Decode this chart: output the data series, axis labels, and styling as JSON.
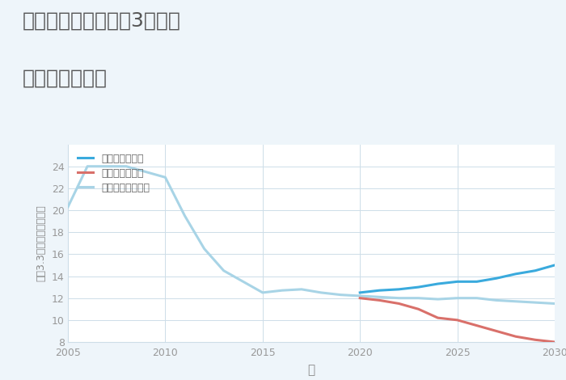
{
  "title_line1": "三重県名張市希央台3番町の",
  "title_line2": "土地の価格推移",
  "xlabel": "年",
  "ylabel": "坪（3.3㎡）単価（万円）",
  "background_color": "#eef5fa",
  "plot_background": "#ffffff",
  "grid_color": "#cddde8",
  "xlim": [
    2005,
    2030
  ],
  "ylim": [
    8,
    26
  ],
  "yticks": [
    8,
    10,
    12,
    14,
    16,
    18,
    20,
    22,
    24
  ],
  "xticks": [
    2005,
    2010,
    2015,
    2020,
    2025,
    2030
  ],
  "good_scenario": {
    "label": "グッドシナリオ",
    "color": "#3aaadd",
    "linewidth": 2.2,
    "x": [
      2020,
      2021,
      2022,
      2023,
      2024,
      2025,
      2026,
      2027,
      2028,
      2029,
      2030
    ],
    "y": [
      12.5,
      12.7,
      12.8,
      13.0,
      13.3,
      13.5,
      13.5,
      13.8,
      14.2,
      14.5,
      15.0
    ]
  },
  "bad_scenario": {
    "label": "バッドシナリオ",
    "color": "#d9706a",
    "linewidth": 2.2,
    "x": [
      2020,
      2021,
      2022,
      2023,
      2024,
      2025,
      2026,
      2027,
      2028,
      2029,
      2030
    ],
    "y": [
      12.0,
      11.8,
      11.5,
      11.0,
      10.2,
      10.0,
      9.5,
      9.0,
      8.5,
      8.2,
      8.0
    ]
  },
  "normal_scenario": {
    "label": "ノーマルシナリオ",
    "color": "#a8d4e6",
    "linewidth": 2.2,
    "x": [
      2005,
      2006,
      2007,
      2008,
      2009,
      2010,
      2011,
      2012,
      2013,
      2014,
      2015,
      2016,
      2017,
      2018,
      2019,
      2020,
      2021,
      2022,
      2023,
      2024,
      2025,
      2026,
      2027,
      2028,
      2029,
      2030
    ],
    "y": [
      20.3,
      24.0,
      24.0,
      24.0,
      23.5,
      23.0,
      19.5,
      16.5,
      14.5,
      13.5,
      12.5,
      12.7,
      12.8,
      12.5,
      12.3,
      12.2,
      12.1,
      12.0,
      12.0,
      11.9,
      12.0,
      12.0,
      11.8,
      11.7,
      11.6,
      11.5
    ]
  },
  "title_color": "#555555",
  "title_fontsize": 18,
  "axis_label_color": "#888888",
  "tick_color": "#999999",
  "legend_label_color": "#666666"
}
